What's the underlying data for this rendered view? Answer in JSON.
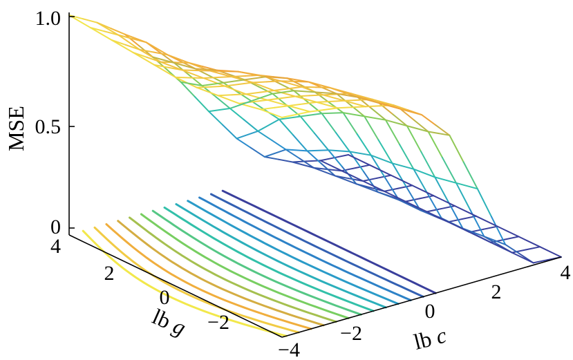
{
  "chart_data": {
    "type": "surface",
    "zlabel": "MSE",
    "xlabel_parts": [
      "lb",
      "g"
    ],
    "ylabel_parts": [
      "lb",
      "c"
    ],
    "z_ticks": [
      "0",
      "0.5",
      "1.0"
    ],
    "g_ticks": [
      "4",
      "2",
      "0",
      "−2",
      "−4"
    ],
    "c_ticks": [
      "−4",
      "−2",
      "0",
      "2",
      "4"
    ],
    "z_range": [
      0,
      1
    ],
    "g_range": [
      -4,
      4
    ],
    "c_range": [
      -4,
      4
    ],
    "grid": false,
    "colormap": [
      "#3a3f9c",
      "#2a8fd0",
      "#2bbfb0",
      "#7fcf5a",
      "#f0a23a",
      "#f2e84b"
    ],
    "surface_mse_rows": [
      [
        1.0,
        0.93,
        0.84,
        0.7,
        0.55,
        0.38,
        0.22,
        0.1,
        0.04,
        0.01,
        0.0
      ],
      [
        0.99,
        0.92,
        0.85,
        0.72,
        0.58,
        0.44,
        0.3,
        0.18,
        0.06,
        0.01,
        0.0
      ],
      [
        0.98,
        0.9,
        0.84,
        0.74,
        0.64,
        0.52,
        0.4,
        0.22,
        0.07,
        0.01,
        0.0
      ],
      [
        0.97,
        0.89,
        0.85,
        0.78,
        0.7,
        0.6,
        0.46,
        0.27,
        0.08,
        0.01,
        0.0
      ],
      [
        0.96,
        0.9,
        0.86,
        0.82,
        0.76,
        0.66,
        0.52,
        0.31,
        0.09,
        0.01,
        0.0
      ],
      [
        0.95,
        0.91,
        0.88,
        0.85,
        0.8,
        0.7,
        0.57,
        0.34,
        0.1,
        0.01,
        0.0
      ],
      [
        0.95,
        0.92,
        0.9,
        0.87,
        0.83,
        0.74,
        0.6,
        0.35,
        0.1,
        0.01,
        0.0
      ],
      [
        0.96,
        0.93,
        0.91,
        0.89,
        0.85,
        0.77,
        0.63,
        0.37,
        0.11,
        0.01,
        0.0
      ],
      [
        0.97,
        0.95,
        0.93,
        0.9,
        0.87,
        0.79,
        0.65,
        0.38,
        0.11,
        0.01,
        0.0
      ],
      [
        0.99,
        0.97,
        0.95,
        0.92,
        0.89,
        0.81,
        0.67,
        0.4,
        0.12,
        0.01,
        0.0
      ],
      [
        1.0,
        0.99,
        0.97,
        0.94,
        0.91,
        0.83,
        0.7,
        0.42,
        0.13,
        0.01,
        0.0
      ]
    ]
  }
}
